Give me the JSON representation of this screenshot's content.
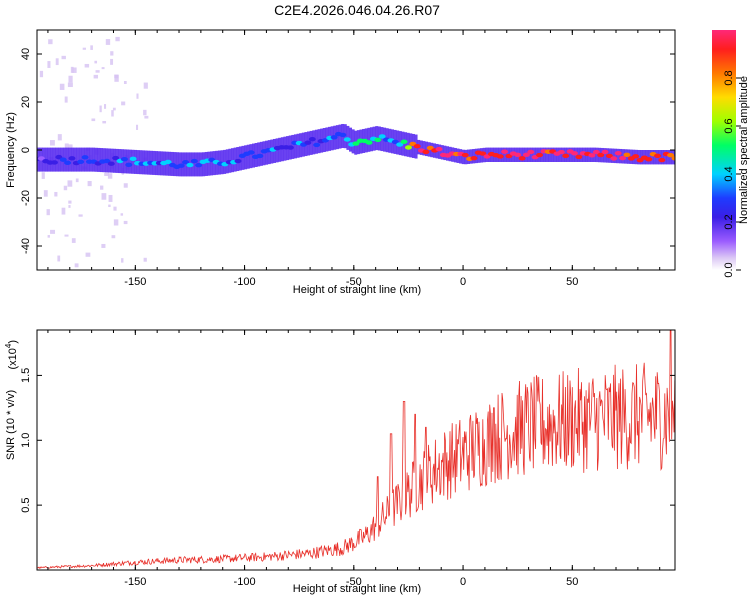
{
  "title": "C2E4.2026.046.04.26.R07",
  "chart_data": [
    {
      "type": "heatmap",
      "name": "spectrogram",
      "xlabel": "Height of straight line (km)",
      "ylabel": "Frequency (Hz)",
      "xlim": [
        -195,
        97
      ],
      "ylim": [
        -50,
        50
      ],
      "xticks": [
        -150,
        -100,
        -50,
        0,
        50
      ],
      "yticks": [
        -40,
        -20,
        0,
        20,
        40
      ],
      "colorbar": {
        "label": "Normalized spectral amplitude",
        "range": [
          0,
          1
        ],
        "ticks": [
          0.0,
          0.2,
          0.4,
          0.6,
          0.8
        ],
        "colormap": [
          "#ffffff",
          "#dcc8f5",
          "#9b5cff",
          "#3a1ee6",
          "#1e3cff",
          "#00d2ff",
          "#00ff64",
          "#a0ff00",
          "#ffdc00",
          "#ff7800",
          "#ff1e1e",
          "#ff2878"
        ]
      },
      "ridge": {
        "x": [
          -195,
          -170,
          -150,
          -130,
          -120,
          -110,
          -100,
          -90,
          -80,
          -70,
          -60,
          -55,
          -50,
          -45,
          -40,
          -35,
          -30,
          -25,
          -20,
          -10,
          0,
          10,
          20,
          40,
          60,
          80,
          97
        ],
        "freq": [
          -4,
          -4,
          -5,
          -6,
          -6,
          -5,
          -3,
          -1,
          1,
          3,
          5,
          6,
          3,
          4,
          5,
          4,
          3,
          2,
          1,
          -1,
          -3,
          -2,
          -2,
          -2,
          -2,
          -3,
          -3
        ],
        "amplitude": [
          0.3,
          0.35,
          0.4,
          0.4,
          0.4,
          0.4,
          0.4,
          0.35,
          0.35,
          0.35,
          0.4,
          0.5,
          0.5,
          0.45,
          0.5,
          0.45,
          0.5,
          0.6,
          0.9,
          0.95,
          0.9,
          0.95,
          0.95,
          0.95,
          0.95,
          0.9,
          0.85
        ]
      }
    },
    {
      "type": "line",
      "name": "snr",
      "xlabel": "Height of straight line (km)",
      "ylabel": "SNR (10 * v/v)",
      "scale_label": "(x10",
      "scale_exponent": "4",
      "xlim": [
        -195,
        97
      ],
      "ylim": [
        0,
        1.85
      ],
      "xticks": [
        -150,
        -100,
        -50,
        0,
        50
      ],
      "yticks": [
        0.5,
        1.0,
        1.5
      ],
      "series": [
        {
          "name": "SNR",
          "color": "#e8302a",
          "envelope_x": [
            -195,
            -170,
            -150,
            -130,
            -110,
            -90,
            -70,
            -55,
            -45,
            -40,
            -35,
            -30,
            -25,
            -20,
            -10,
            0,
            10,
            20,
            30,
            50,
            70,
            90,
            97
          ],
          "envelope_y": [
            0.02,
            0.04,
            0.07,
            0.09,
            0.1,
            0.12,
            0.15,
            0.2,
            0.3,
            0.4,
            0.5,
            0.6,
            0.7,
            0.8,
            0.95,
            1.05,
            1.15,
            1.25,
            1.3,
            1.35,
            1.38,
            1.4,
            1.42
          ],
          "peaks_x": [
            -39,
            -33,
            -27,
            -22,
            -17,
            14,
            95
          ],
          "peaks_y": [
            0.72,
            1.05,
            1.3,
            1.2,
            1.1,
            1.25,
            1.85
          ]
        }
      ]
    }
  ]
}
